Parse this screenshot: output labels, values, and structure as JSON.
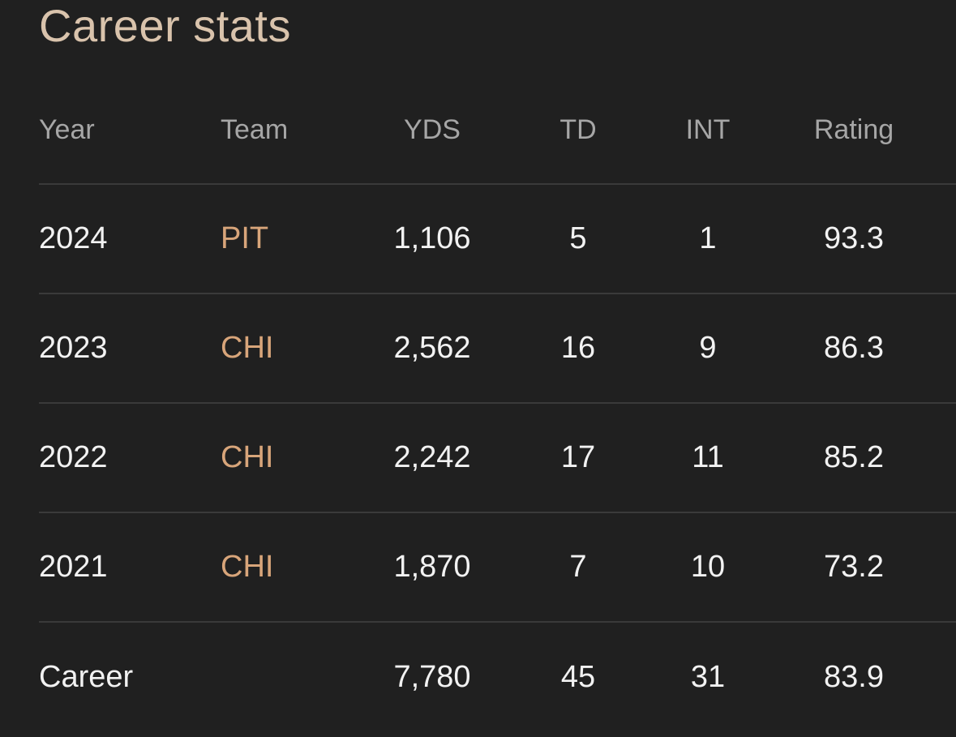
{
  "title": "Career stats",
  "columns": {
    "year": "Year",
    "team": "Team",
    "yds": "YDS",
    "td": "TD",
    "int": "INT",
    "rating": "Rating"
  },
  "rows": [
    {
      "year": "2024",
      "team": "PIT",
      "yds": "1,106",
      "td": "5",
      "int": "1",
      "rating": "93.3"
    },
    {
      "year": "2023",
      "team": "CHI",
      "yds": "2,562",
      "td": "16",
      "int": "9",
      "rating": "86.3"
    },
    {
      "year": "2022",
      "team": "CHI",
      "yds": "2,242",
      "td": "17",
      "int": "11",
      "rating": "85.2"
    },
    {
      "year": "2021",
      "team": "CHI",
      "yds": "1,870",
      "td": "7",
      "int": "10",
      "rating": "73.2"
    }
  ],
  "career": {
    "label": "Career",
    "yds": "7,780",
    "td": "45",
    "int": "31",
    "rating": "83.9"
  },
  "colors": {
    "background": "#202020",
    "title": "#d9c3ac",
    "team_link": "#d8a57a",
    "header_text": "#a6a6a6",
    "body_text": "#f2f2f2",
    "divider": "#3a3a3a"
  }
}
